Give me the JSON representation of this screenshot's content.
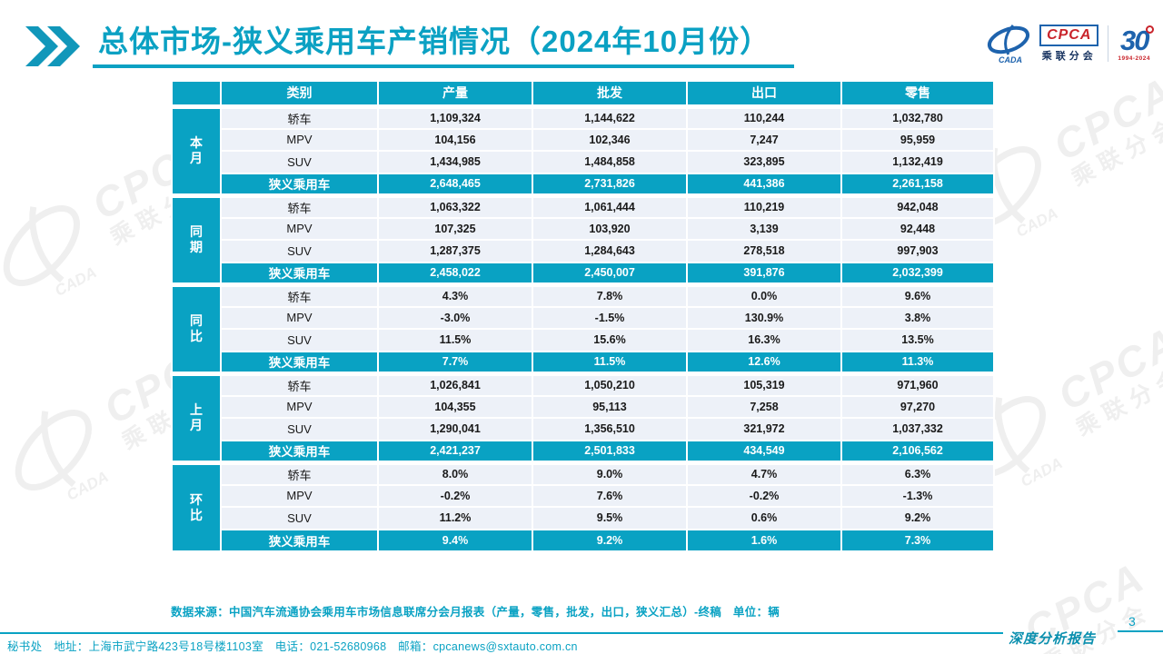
{
  "title": {
    "text": "总体市场-狭义乘用车产销情况（2024年10月份）"
  },
  "logo": {
    "cada_text": "CADA",
    "cpca_text": "CPCA",
    "cpca_sub": "乘联分会",
    "anniversary": "30",
    "anniversary_years": "1994-2024"
  },
  "watermark": {
    "cpca": "CPCA",
    "sub": "乘联分会"
  },
  "table": {
    "columns": [
      "类别",
      "产量",
      "批发",
      "出口",
      "零售"
    ],
    "groups": [
      {
        "label": "本月",
        "rows": [
          [
            "轿车",
            "1,109,324",
            "1,144,622",
            "110,244",
            "1,032,780"
          ],
          [
            "MPV",
            "104,156",
            "102,346",
            "7,247",
            "95,959"
          ],
          [
            "SUV",
            "1,434,985",
            "1,484,858",
            "323,895",
            "1,132,419"
          ]
        ],
        "summary": [
          "狭义乘用车",
          "2,648,465",
          "2,731,826",
          "441,386",
          "2,261,158"
        ]
      },
      {
        "label": "同期",
        "rows": [
          [
            "轿车",
            "1,063,322",
            "1,061,444",
            "110,219",
            "942,048"
          ],
          [
            "MPV",
            "107,325",
            "103,920",
            "3,139",
            "92,448"
          ],
          [
            "SUV",
            "1,287,375",
            "1,284,643",
            "278,518",
            "997,903"
          ]
        ],
        "summary": [
          "狭义乘用车",
          "2,458,022",
          "2,450,007",
          "391,876",
          "2,032,399"
        ]
      },
      {
        "label": "同比",
        "rows": [
          [
            "轿车",
            "4.3%",
            "7.8%",
            "0.0%",
            "9.6%"
          ],
          [
            "MPV",
            "-3.0%",
            "-1.5%",
            "130.9%",
            "3.8%"
          ],
          [
            "SUV",
            "11.5%",
            "15.6%",
            "16.3%",
            "13.5%"
          ]
        ],
        "summary": [
          "狭义乘用车",
          "7.7%",
          "11.5%",
          "12.6%",
          "11.3%"
        ]
      },
      {
        "label": "上月",
        "rows": [
          [
            "轿车",
            "1,026,841",
            "1,050,210",
            "105,319",
            "971,960"
          ],
          [
            "MPV",
            "104,355",
            "95,113",
            "7,258",
            "97,270"
          ],
          [
            "SUV",
            "1,290,041",
            "1,356,510",
            "321,972",
            "1,037,332"
          ]
        ],
        "summary": [
          "狭义乘用车",
          "2,421,237",
          "2,501,833",
          "434,549",
          "2,106,562"
        ]
      },
      {
        "label": "环比",
        "rows": [
          [
            "轿车",
            "8.0%",
            "9.0%",
            "4.7%",
            "6.3%"
          ],
          [
            "MPV",
            "-0.2%",
            "7.6%",
            "-0.2%",
            "-1.3%"
          ],
          [
            "SUV",
            "11.2%",
            "9.5%",
            "0.6%",
            "9.2%"
          ]
        ],
        "summary": [
          "狭义乘用车",
          "9.4%",
          "9.2%",
          "1.6%",
          "7.3%"
        ]
      }
    ]
  },
  "source_note": "数据来源：中国汽车流通协会乘用车市场信息联席分会月报表（产量，零售，批发，出口，狭义汇总）-终稿　单位：辆",
  "footer": {
    "address": "秘书处　地址：上海市武宁路423号18号楼1103室　电话：021-52680968　邮箱：cpcanews@sxtauto.com.cn",
    "report_label": "深度分析报告",
    "page_number": "3"
  },
  "colors": {
    "accent_teal": "#09a2c3",
    "row_background": "#edf1f8",
    "logo_blue": "#1e63ad",
    "logo_red": "#c9242b"
  }
}
